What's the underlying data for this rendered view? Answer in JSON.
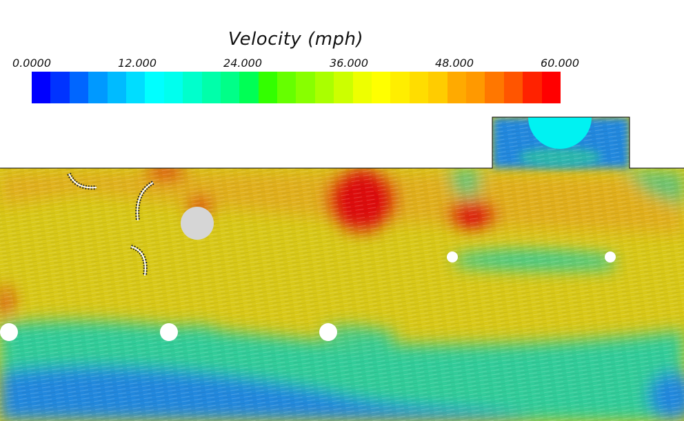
{
  "legend": {
    "title": "Velocity (mph)",
    "ticks": [
      "0.0000",
      "12.000",
      "24.000",
      "36.000",
      "48.000",
      "60.000"
    ],
    "colors": [
      "#0000ff",
      "#0033ff",
      "#0066ff",
      "#0099ff",
      "#00bbff",
      "#00ddff",
      "#00ffff",
      "#00ffee",
      "#00ffcc",
      "#00ffaa",
      "#00ff88",
      "#00ff55",
      "#33ff00",
      "#66ff00",
      "#88ff00",
      "#aaff00",
      "#ccff00",
      "#eeff00",
      "#ffff00",
      "#ffee00",
      "#ffdd00",
      "#ffcc00",
      "#ffaa00",
      "#ff9900",
      "#ff7700",
      "#ff5500",
      "#ff2200",
      "#ff0000"
    ]
  },
  "field_colors": {
    "high": "#dd1111",
    "medium_high": "#e89a22",
    "medium": "#d8c818",
    "low": "#33cc99",
    "very_low": "#2288dd",
    "obstacle": "#ffffff",
    "large_obstacle": "#d6d6d6",
    "inlet": "#00f2f2"
  }
}
